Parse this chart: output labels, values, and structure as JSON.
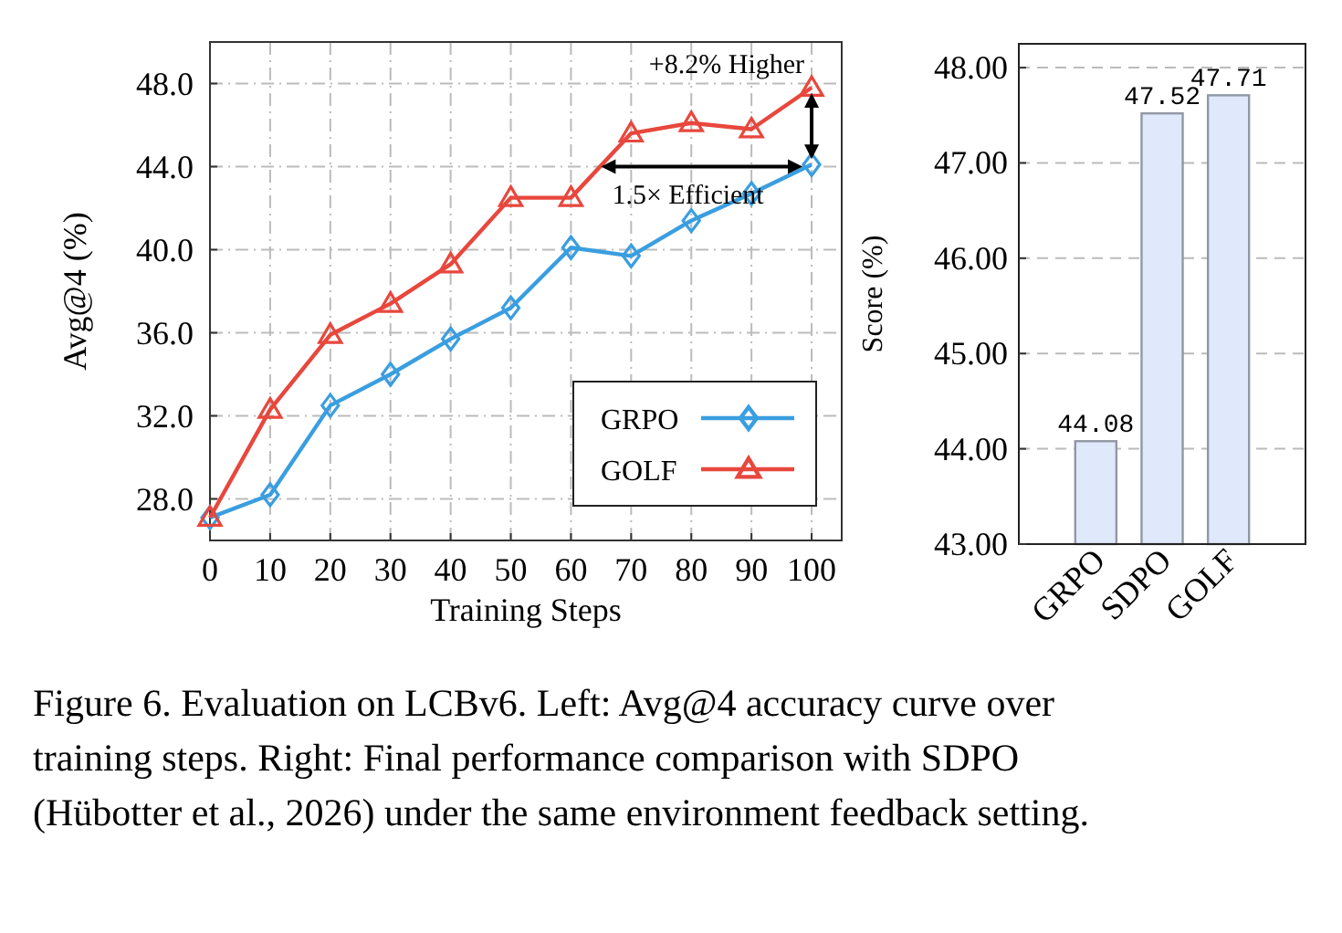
{
  "chart_data": [
    {
      "type": "line",
      "xlabel": "Training Steps",
      "ylabel": "Avg@4 (%)",
      "x": [
        0,
        10,
        20,
        30,
        40,
        50,
        60,
        70,
        80,
        90,
        100
      ],
      "xlim": [
        0,
        105
      ],
      "xticks": [
        0,
        10,
        20,
        30,
        40,
        50,
        60,
        70,
        80,
        90,
        100
      ],
      "ylim": [
        26,
        50
      ],
      "yticks": [
        {
          "value": 28,
          "label": "28.0"
        },
        {
          "value": 32,
          "label": "32.0"
        },
        {
          "value": 36,
          "label": "36.0"
        },
        {
          "value": 40,
          "label": "40.0"
        },
        {
          "value": 44,
          "label": "44.0"
        },
        {
          "value": 48,
          "label": "48.0"
        }
      ],
      "grid": true,
      "legend": "bottom right",
      "line_style": "solid",
      "series": [
        {
          "name": "GRPO",
          "color": "#3a9ee0",
          "marker": "diamond",
          "values": [
            27.1,
            28.2,
            32.5,
            34.0,
            35.7,
            37.2,
            40.1,
            39.7,
            41.4,
            42.7,
            44.1
          ]
        },
        {
          "name": "GOLF",
          "color": "#e8473d",
          "marker": "triangle",
          "values": [
            27.1,
            32.3,
            35.9,
            37.4,
            39.3,
            42.5,
            42.5,
            45.6,
            46.1,
            45.8,
            47.8
          ]
        }
      ],
      "annotations": [
        {
          "text": "+8.2% Higher",
          "x": 100,
          "y": 47.8
        },
        {
          "text": "1.5× Efficient",
          "x": 65,
          "y": 44
        },
        "Figure 6. Evaluation on LCBv6. Left: Avg@4 accuracy curve over training steps. Right: Final performance comparison with SDPO (Hübotter et al., 2026) under the same environment feedback setting."
      ]
    },
    {
      "type": "bar",
      "ylabel": "Score (%)",
      "categories": [
        "GRPO",
        "SDPO",
        "GOLF"
      ],
      "values": [
        44.08,
        47.52,
        47.71
      ],
      "color": "#dfe9fb",
      "ylim": [
        43,
        48.25
      ],
      "yticks": [
        {
          "value": 43,
          "label": "43.00"
        },
        {
          "value": 44,
          "label": "44.00"
        },
        {
          "value": 45,
          "label": "45.00"
        },
        {
          "value": 46,
          "label": "46.00"
        },
        {
          "value": 47,
          "label": "47.00"
        },
        {
          "value": 48,
          "label": "48.00"
        }
      ],
      "grid": "y",
      "data_labels": true
    }
  ]
}
